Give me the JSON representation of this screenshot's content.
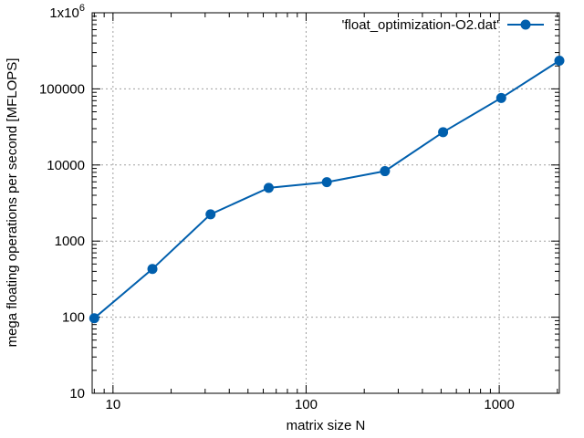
{
  "chart_data": {
    "type": "line",
    "title": "",
    "xlabel": "matrix size N",
    "ylabel": "mega floating operations per second [MFLOPS]",
    "x_scale": "log",
    "y_scale": "log",
    "xlim": [
      7.8,
      2048
    ],
    "ylim": [
      10,
      1000000
    ],
    "grid": true,
    "legend_position": "top-right",
    "x_ticks": [
      {
        "value": 10,
        "label": "10"
      },
      {
        "value": 100,
        "label": "100"
      },
      {
        "value": 1000,
        "label": "1000"
      }
    ],
    "y_ticks": [
      {
        "value": 10,
        "label": "10"
      },
      {
        "value": 100,
        "label": "100"
      },
      {
        "value": 1000,
        "label": "1000"
      },
      {
        "value": 10000,
        "label": "10000"
      },
      {
        "value": 100000,
        "label": "100000"
      },
      {
        "value": 1000000,
        "label": "1x10",
        "sup": "6"
      }
    ],
    "series": [
      {
        "name": "'float_optimization-O2.dat'",
        "color": "#005fad",
        "x": [
          8,
          16,
          32,
          64,
          128,
          256,
          512,
          1024,
          2048
        ],
        "y": [
          97,
          430,
          2250,
          5000,
          5950,
          8300,
          27000,
          76000,
          235000
        ]
      }
    ]
  }
}
